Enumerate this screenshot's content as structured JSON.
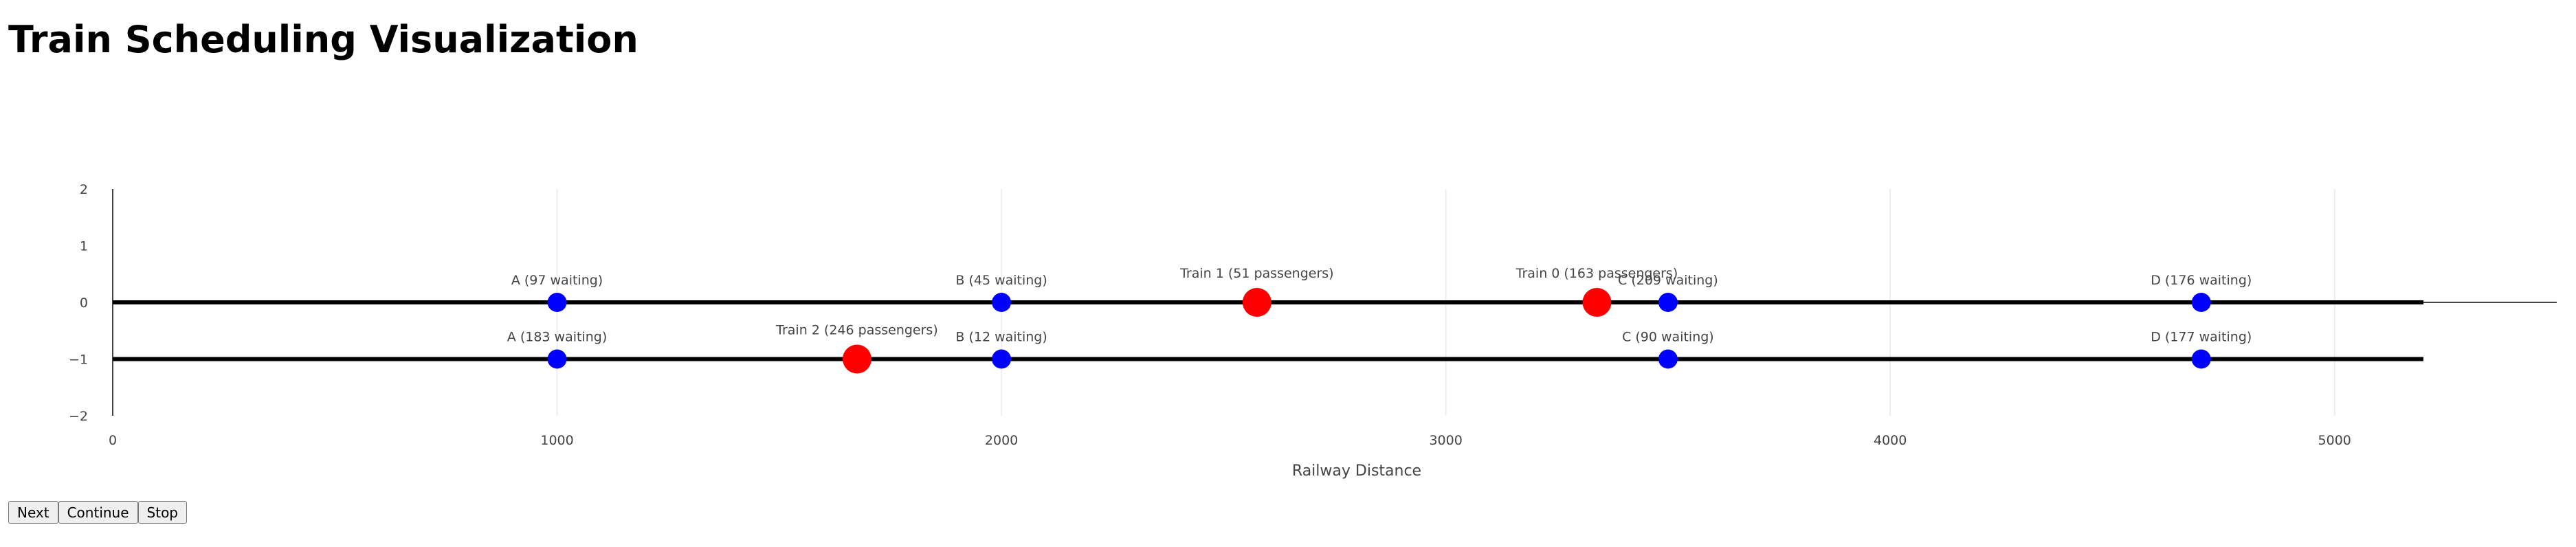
{
  "page_title": "Train Scheduling Visualization",
  "buttons": {
    "next": "Next",
    "continue": "Continue",
    "stop": "Stop"
  },
  "colors": {
    "station": "#0000ff",
    "train": "#ff0000",
    "track": "#000000",
    "grid": "#eeeeee"
  },
  "chart_data": {
    "type": "scatter",
    "xlabel": "Railway Distance",
    "ylabel": "",
    "xlim": [
      0,
      5500
    ],
    "ylim": [
      -2,
      2
    ],
    "x_ticks": [
      0,
      1000,
      2000,
      3000,
      4000,
      5000
    ],
    "y_ticks": [
      2,
      1,
      0,
      -1,
      -2
    ],
    "y_tick_labels": [
      "2",
      "1",
      "0",
      "−1",
      "−2"
    ],
    "tracks": [
      {
        "y": 0,
        "x_start": 0,
        "x_end": 5200
      },
      {
        "y": -1,
        "x_start": 0,
        "x_end": 5200
      }
    ],
    "stations": [
      {
        "x": 1000,
        "y": 0,
        "label": "A (97 waiting)"
      },
      {
        "x": 2000,
        "y": 0,
        "label": "B (45 waiting)"
      },
      {
        "x": 3500,
        "y": 0,
        "label": "C (209 waiting)"
      },
      {
        "x": 4700,
        "y": 0,
        "label": "D (176 waiting)"
      },
      {
        "x": 1000,
        "y": -1,
        "label": "A (183 waiting)"
      },
      {
        "x": 2000,
        "y": -1,
        "label": "B (12 waiting)"
      },
      {
        "x": 3500,
        "y": -1,
        "label": "C (90 waiting)"
      },
      {
        "x": 4700,
        "y": -1,
        "label": "D (177 waiting)"
      }
    ],
    "trains": [
      {
        "x": 2575,
        "y": 0,
        "label": "Train 1 (51 passengers)"
      },
      {
        "x": 3340,
        "y": 0,
        "label": "Train 0 (163 passengers)"
      },
      {
        "x": 1675,
        "y": -1,
        "label": "Train 2 (246 passengers)"
      }
    ]
  }
}
